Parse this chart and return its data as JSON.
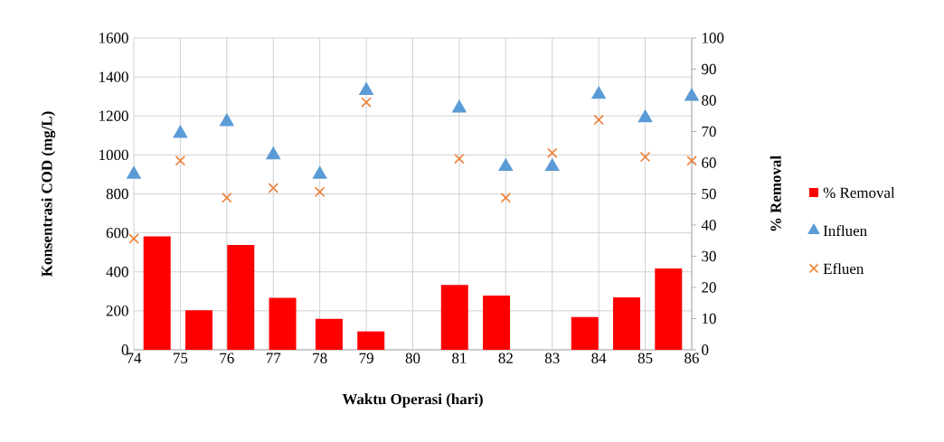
{
  "chart_data": {
    "type": "scatter",
    "xlabel": "Waktu Operasi (hari)",
    "ylabel": "Konsentrasi COD (mg/L)",
    "y2label": "% Removal",
    "xlim": [
      74,
      86
    ],
    "xticks": [
      74,
      75,
      76,
      77,
      78,
      79,
      80,
      81,
      82,
      83,
      84,
      85,
      86
    ],
    "ylim": [
      0,
      1600
    ],
    "yticks": [
      0,
      200,
      400,
      600,
      800,
      1000,
      1200,
      1400,
      1600
    ],
    "y2lim": [
      0,
      100
    ],
    "y2ticks": [
      0,
      10,
      20,
      30,
      40,
      50,
      60,
      70,
      80,
      90,
      100
    ],
    "grid": true,
    "legend": "right",
    "series": [
      {
        "name": "% Removal",
        "type": "bar",
        "axis": "y2",
        "color": "#ff0000",
        "x": [
          74.5,
          75.4,
          76.3,
          77.2,
          78.2,
          79.1,
          80.9,
          81.8,
          83.7,
          84.6,
          85.5
        ],
        "values": [
          36.4,
          12.7,
          33.6,
          16.7,
          9.9,
          5.9,
          20.8,
          17.4,
          10.5,
          16.8,
          26.1
        ]
      },
      {
        "name": "Influen",
        "marker": "triangle",
        "color": "#5b9bd5",
        "x": [
          74,
          75,
          76,
          77,
          78,
          79,
          81,
          82,
          83,
          84,
          85,
          86
        ],
        "values": [
          900,
          1110,
          1170,
          1000,
          900,
          1330,
          1240,
          940,
          940,
          1310,
          1190,
          1300
        ]
      },
      {
        "name": "Efluen",
        "marker": "cross",
        "color": "#ed7d31",
        "x": [
          74,
          75,
          76,
          77,
          78,
          79,
          81,
          82,
          83,
          84,
          85,
          86
        ],
        "values": [
          570,
          970,
          780,
          830,
          810,
          1270,
          980,
          780,
          1010,
          1180,
          990,
          970
        ]
      }
    ]
  }
}
